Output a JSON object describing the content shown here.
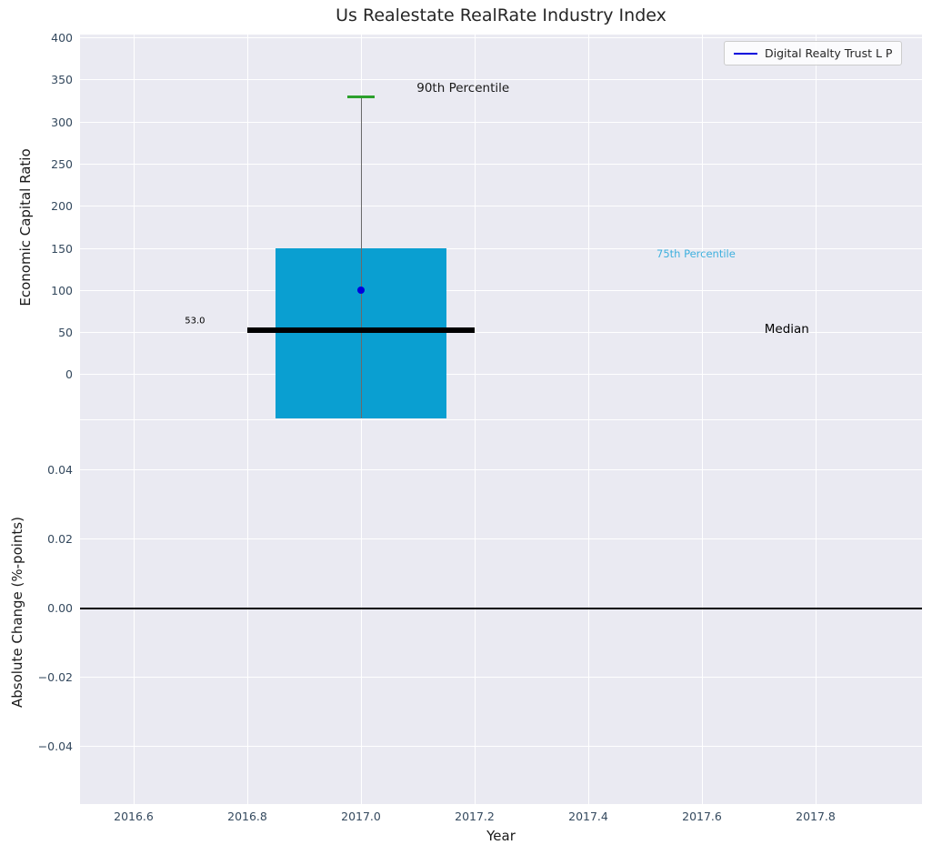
{
  "title": "Us Realestate RealRate Industry Index",
  "chart_data": {
    "type": "box",
    "title": "Us Realestate RealRate Industry Index",
    "xlabel": "Year",
    "legend": {
      "label": "Digital Realty Trust L P",
      "line_color": "#0000dd",
      "position": "upper right"
    },
    "grid": true,
    "x_axis": {
      "lim": [
        2016.5056,
        2017.9872
      ],
      "ticks": [
        2016.6,
        2016.8,
        2017.0,
        2017.2,
        2017.4,
        2017.6,
        2017.8
      ],
      "tick_labels": [
        "2016.6",
        "2016.8",
        "2017.0",
        "2017.2",
        "2017.4",
        "2017.6",
        "2017.8"
      ]
    },
    "panels": [
      {
        "ylabel": "Economic Capital Ratio",
        "ylim": [
          -53,
          404
        ],
        "yticks": [
          400,
          350,
          300,
          250,
          200,
          150,
          100,
          50,
          0
        ],
        "ytick_labels": [
          "400",
          "350",
          "300",
          "250",
          "200",
          "150",
          "100",
          "50",
          "0"
        ]
      },
      {
        "ylabel": "Absolute Change (%-points)",
        "ylim": [
          -0.0566,
          0.0547
        ],
        "yticks": [
          0.04,
          0.02,
          0,
          -0.02,
          -0.04
        ],
        "ytick_labels": [
          "0.04",
          "0.02",
          "0.00",
          "−0.02",
          "−0.04"
        ],
        "zero_line": 0
      }
    ],
    "series": {
      "box": {
        "left": 2016.85,
        "right": 2017.15,
        "top": 150,
        "bottom": -53,
        "color": "#0a9fd1",
        "meaning": "inter-percentile box, top = 75th percentile = 150"
      },
      "whisker": {
        "x": 2017.0,
        "top": 330
      },
      "cap": {
        "y": 330,
        "x_left": 2016.976,
        "x_right": 2017.024,
        "color": "#2ca02c",
        "percentile": "90th"
      },
      "median": {
        "value": 53.0,
        "left": 2016.8,
        "right": 2017.2
      },
      "company_point": {
        "x": 2017.0,
        "y": 100,
        "color": "#0000dd",
        "name": "Digital Realty Trust L P"
      },
      "percentile_75": 150,
      "percentile_90": 330
    },
    "annotations": [
      {
        "name": "90th-percentile",
        "text": "90th Percentile",
        "x": 2017.098,
        "y": 340,
        "color": "#1a1a1a",
        "size": 13.5
      },
      {
        "name": "75th-percentile",
        "text": "75th Percentile",
        "x": 2017.52,
        "y": 144,
        "color": "#3fb0de",
        "size": 11.5
      },
      {
        "name": "median",
        "text": "Median",
        "x": 2017.71,
        "y": 54,
        "color": "#000000",
        "size": 13.5
      },
      {
        "name": "median-value",
        "text": "53.0",
        "x": 2016.69,
        "y": 64,
        "color": "#000000",
        "size": 10
      }
    ],
    "colors": {
      "panel_background": "#eaeaf2",
      "grid": "#ffffff",
      "tick_label": "#34495e",
      "box": "#0a9fd1",
      "cap_green": "#2ca02c",
      "company_blue": "#0000dd",
      "median_black": "#000000"
    }
  }
}
